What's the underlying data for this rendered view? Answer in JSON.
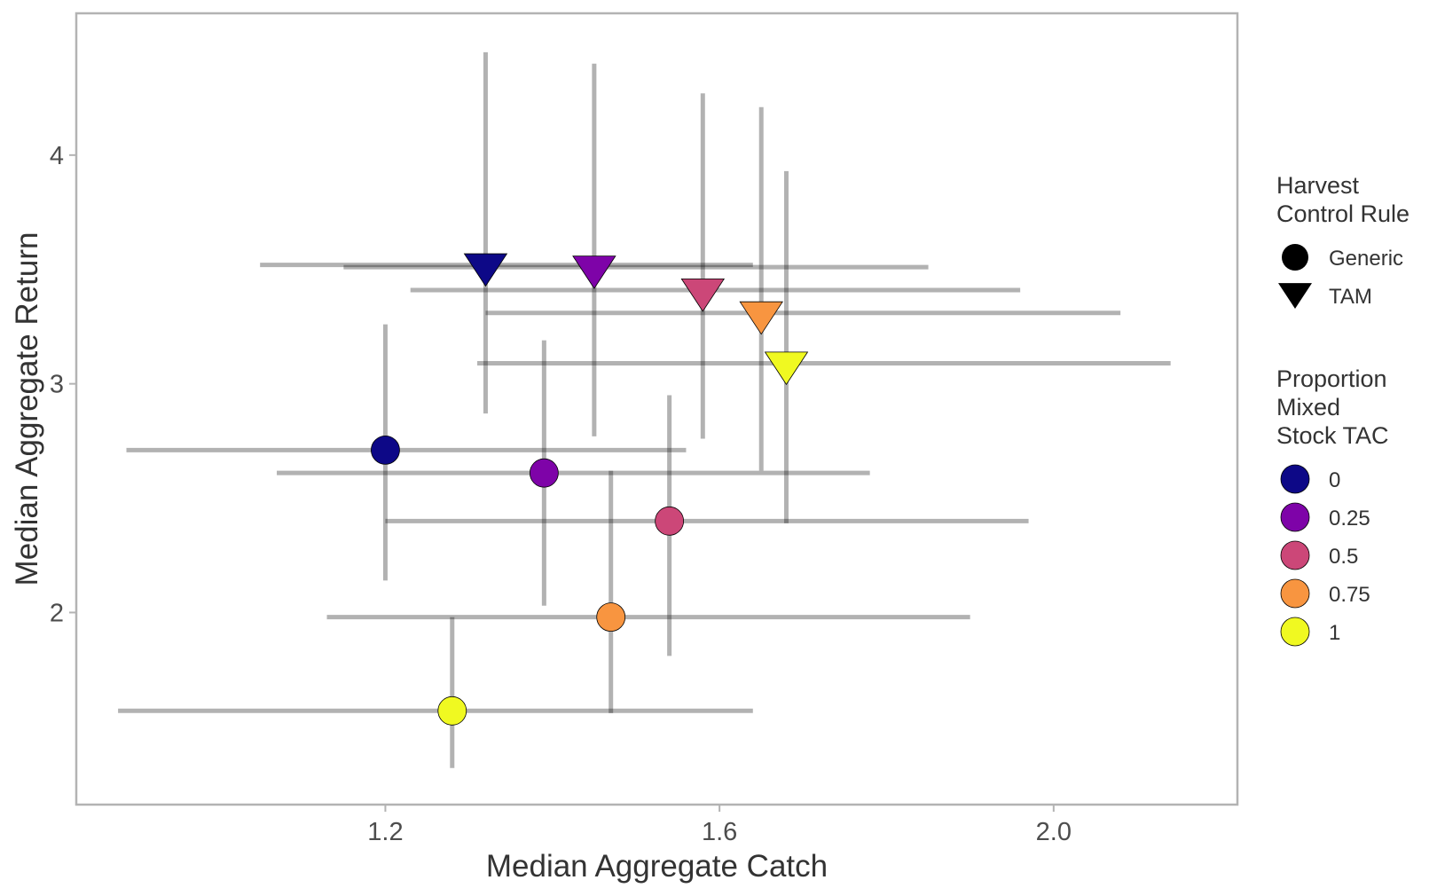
{
  "chart_data": {
    "type": "scatter",
    "title": "",
    "xlabel": "Median Aggregate Catch",
    "ylabel": "Median Aggregate Return",
    "xlim": [
      0.83,
      2.22
    ],
    "ylim": [
      1.16,
      4.62
    ],
    "x_ticks": [
      1.2,
      1.6,
      2.0
    ],
    "x_tick_labels": [
      "1.2",
      "1.6",
      "2.0"
    ],
    "y_ticks": [
      2,
      3,
      4
    ],
    "y_tick_labels": [
      "2",
      "3",
      "4"
    ],
    "grid": false,
    "legend_position": "right",
    "legend": {
      "shape_title": [
        "Harvest",
        "Control Rule"
      ],
      "shapes": [
        {
          "label": "Generic",
          "marker": "circle"
        },
        {
          "label": "TAM",
          "marker": "triangle-down"
        }
      ],
      "color_title": [
        "Proportion",
        "Mixed",
        "Stock TAC"
      ],
      "colors": [
        {
          "label": "0",
          "color": "#0D0887"
        },
        {
          "label": "0.25",
          "color": "#7E03A8"
        },
        {
          "label": "0.5",
          "color": "#CC4778"
        },
        {
          "label": "0.75",
          "color": "#F89540"
        },
        {
          "label": "1",
          "color": "#F0F921"
        }
      ]
    },
    "series": [
      {
        "name": "Generic",
        "marker": "circle",
        "points": [
          {
            "proportion": "0",
            "x": 1.2,
            "y": 2.71,
            "x_low": 0.89,
            "x_high": 1.56,
            "y_low": 2.14,
            "y_high": 3.26
          },
          {
            "proportion": "0.25",
            "x": 1.39,
            "y": 2.61,
            "x_low": 1.07,
            "x_high": 1.78,
            "y_low": 2.03,
            "y_high": 3.19
          },
          {
            "proportion": "0.5",
            "x": 1.54,
            "y": 2.4,
            "x_low": 1.2,
            "x_high": 1.97,
            "y_low": 1.81,
            "y_high": 2.95
          },
          {
            "proportion": "0.75",
            "x": 1.47,
            "y": 1.98,
            "x_low": 1.13,
            "x_high": 1.9,
            "y_low": 1.56,
            "y_high": 2.62
          },
          {
            "proportion": "1",
            "x": 1.28,
            "y": 1.57,
            "x_low": 0.88,
            "x_high": 1.64,
            "y_low": 1.32,
            "y_high": 1.98
          }
        ]
      },
      {
        "name": "TAM",
        "marker": "triangle-down",
        "points": [
          {
            "proportion": "0",
            "x": 1.32,
            "y": 3.52,
            "x_low": 1.05,
            "x_high": 1.64,
            "y_low": 2.87,
            "y_high": 4.45
          },
          {
            "proportion": "0.25",
            "x": 1.45,
            "y": 3.51,
            "x_low": 1.15,
            "x_high": 1.85,
            "y_low": 2.77,
            "y_high": 4.4
          },
          {
            "proportion": "0.5",
            "x": 1.58,
            "y": 3.41,
            "x_low": 1.23,
            "x_high": 1.96,
            "y_low": 2.76,
            "y_high": 4.27
          },
          {
            "proportion": "0.75",
            "x": 1.65,
            "y": 3.31,
            "x_low": 1.32,
            "x_high": 2.08,
            "y_low": 2.62,
            "y_high": 4.21
          },
          {
            "proportion": "1",
            "x": 1.68,
            "y": 3.09,
            "x_low": 1.31,
            "x_high": 2.14,
            "y_low": 2.39,
            "y_high": 3.93
          }
        ]
      }
    ]
  }
}
